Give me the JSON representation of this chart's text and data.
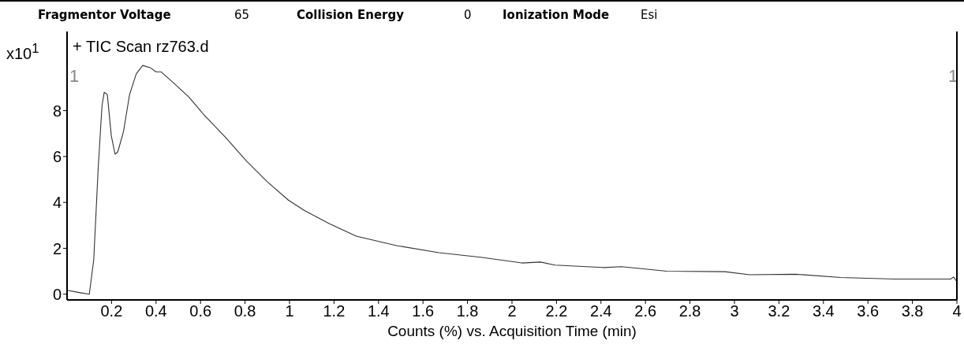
{
  "chart_data": {
    "type": "line",
    "title": "+ TIC Scan rz763.d",
    "xlabel": "Counts (%) vs. Acquisition Time (min)",
    "ylabel": "x10$^{1}$",
    "annotations": [
      "Fragmentor Voltage",
      "65",
      "Collision Energy",
      "0",
      "Ionization Mode",
      "Esi",
      "1",
      "1"
    ],
    "series": [
      {
        "color": "#333333",
        "x": [
          0.0,
          0.05,
          0.1,
          0.12,
          0.14,
          0.157,
          0.167,
          0.181,
          0.199,
          0.216,
          0.228,
          0.254,
          0.281,
          0.311,
          0.34,
          0.376,
          0.4,
          0.423,
          0.476,
          0.547,
          0.617,
          0.712,
          0.806,
          0.9,
          0.995,
          1.066,
          1.178,
          1.3,
          1.485,
          1.672,
          1.858,
          2.044,
          2.128,
          2.193,
          2.416,
          2.491,
          2.696,
          2.957,
          3.068,
          3.273,
          3.478,
          3.72,
          3.972,
          3.985,
          4.0
        ],
        "values": [
          0.17,
          0.08,
          0.0,
          1.5,
          5.5,
          8.2,
          8.8,
          8.7,
          6.9,
          6.1,
          6.2,
          7.1,
          8.7,
          9.6,
          9.97,
          9.86,
          9.69,
          9.69,
          9.23,
          8.6,
          7.8,
          6.84,
          5.81,
          4.9,
          4.1,
          3.65,
          3.08,
          2.53,
          2.11,
          1.81,
          1.61,
          1.36,
          1.4,
          1.27,
          1.16,
          1.2,
          1.0,
          0.98,
          0.85,
          0.87,
          0.73,
          0.66,
          0.66,
          0.75,
          0.55
        ]
      }
    ],
    "xlim": [
      0,
      4
    ],
    "xticks": [
      0.2,
      0.4,
      0.6,
      0.8,
      1,
      1.2,
      1.4,
      1.6,
      1.8,
      2,
      2.2,
      2.4,
      2.6,
      2.8,
      3,
      3.2,
      3.4,
      3.6,
      3.8,
      4
    ],
    "ylim": [
      -0.25,
      11.45
    ],
    "yticks": [
      0,
      2,
      4,
      6,
      8
    ],
    "grid": false,
    "marker": "none",
    "line_style": "solid"
  }
}
